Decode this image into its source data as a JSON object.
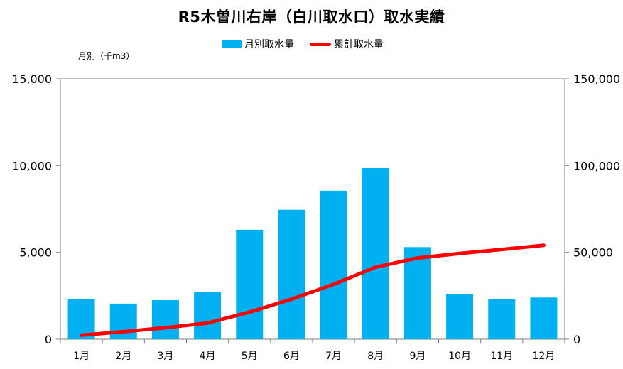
{
  "chart_data": {
    "type": "bar",
    "title": "R5木曽川右岸（白川取水口）取水実績",
    "unit_label": "月別（千m3）",
    "categories": [
      "1月",
      "2月",
      "3月",
      "4月",
      "5月",
      "6月",
      "7月",
      "8月",
      "9月",
      "10月",
      "11月",
      "12月"
    ],
    "series": [
      {
        "name": "月別取水量",
        "type": "bar",
        "axis": "left",
        "color": "#00b0f0",
        "values": [
          2300,
          2050,
          2250,
          2700,
          6300,
          7450,
          8550,
          9850,
          5300,
          2600,
          2300,
          2400
        ]
      },
      {
        "name": "累計取水量",
        "type": "line",
        "axis": "right",
        "color": "#ff0000",
        "values": [
          2300,
          4350,
          6600,
          9300,
          15600,
          23050,
          31600,
          41450,
          46750,
          49350,
          51650,
          54050
        ]
      }
    ],
    "y_left": {
      "ylim": [
        0,
        15000
      ],
      "ticks": [
        "0",
        "5,000",
        "10,000",
        "15,000"
      ],
      "tick_values": [
        0,
        5000,
        10000,
        15000
      ]
    },
    "y_right": {
      "ylim": [
        0,
        150000
      ],
      "ticks": [
        "0",
        "50,000",
        "100,000",
        "150,000"
      ],
      "tick_values": [
        0,
        50000,
        100000,
        150000
      ]
    },
    "grid": false,
    "legend_position": "top-center"
  }
}
